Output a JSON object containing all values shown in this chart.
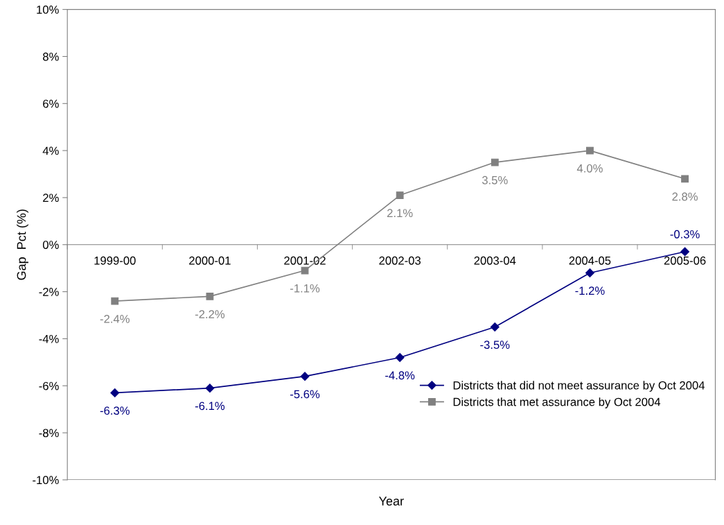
{
  "chart_data": {
    "type": "line",
    "xlabel": "Year",
    "ylabel": "Gap  Pct (%)",
    "categories": [
      "1999-00",
      "2000-01",
      "2001-02",
      "2002-03",
      "2003-04",
      "2004-05",
      "2005-06"
    ],
    "series": [
      {
        "name": "Districts that did not meet assurance by Oct 2004",
        "color": "#000080",
        "marker": "diamond",
        "values": [
          -6.3,
          -6.1,
          -5.6,
          -4.8,
          -3.5,
          -1.2,
          -0.3
        ],
        "value_labels": [
          "-6.3%",
          "-6.1%",
          "-5.6%",
          "-4.8%",
          "-3.5%",
          "-1.2%",
          "-0.3%"
        ]
      },
      {
        "name": "Districts that met assurance by Oct 2004",
        "color": "#808080",
        "marker": "square",
        "values": [
          -2.4,
          -2.2,
          -1.1,
          2.1,
          3.5,
          4.0,
          2.8
        ],
        "value_labels": [
          "-2.4%",
          "-2.2%",
          "-1.1%",
          "2.1%",
          "3.5%",
          "4.0%",
          "2.8%"
        ]
      }
    ],
    "ylim": [
      -10,
      10
    ],
    "yticks": [
      {
        "value": -10,
        "label": "-10%"
      },
      {
        "value": -8,
        "label": "-8%"
      },
      {
        "value": -6,
        "label": "-6%"
      },
      {
        "value": -4,
        "label": "-4%"
      },
      {
        "value": -2,
        "label": "-2%"
      },
      {
        "value": 0,
        "label": "0%"
      },
      {
        "value": 2,
        "label": "2%"
      },
      {
        "value": 4,
        "label": "4%"
      },
      {
        "value": 6,
        "label": "6%"
      },
      {
        "value": 8,
        "label": "8%"
      },
      {
        "value": 10,
        "label": "10%"
      }
    ],
    "legend": "bottom right",
    "grid": false,
    "line_style": "solid"
  }
}
